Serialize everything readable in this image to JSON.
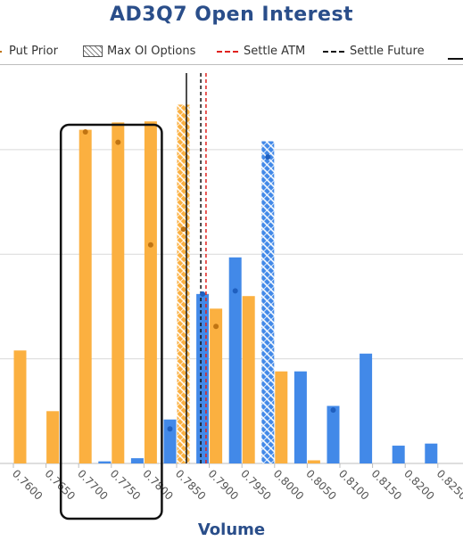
{
  "chart_data": {
    "type": "bar",
    "title": "AD3Q7 Open Interest",
    "xlabel": "Volume",
    "ylabel": "",
    "categories": [
      "0.7600",
      "0.7650",
      "0.7700",
      "0.7750",
      "0.7800",
      "0.7850",
      "0.7900",
      "0.7950",
      "0.8000",
      "0.8050",
      "0.8100",
      "0.8150",
      "0.8200",
      "0.8250"
    ],
    "ylim": [
      0,
      3.8
    ],
    "grid": true,
    "legend_position": "top",
    "legend": {
      "put_prior": "Put Prior",
      "max_oi": "Max OI Options",
      "settle_atm": "Settle ATM",
      "settle_future": "Settle Future"
    },
    "series": [
      {
        "role": "call",
        "color": "#4289e8",
        "values": [
          0,
          0,
          0,
          0.02,
          0.05,
          0.42,
          1.62,
          1.97,
          3.08,
          0.88,
          0.55,
          1.05,
          0.17,
          0.19
        ]
      },
      {
        "role": "put",
        "color": "#fbb040",
        "values": [
          1.08,
          0.5,
          3.19,
          3.26,
          3.27,
          3.43,
          1.48,
          1.6,
          0.88,
          0.03,
          0,
          0,
          0,
          0
        ]
      },
      {
        "role": "put-prior",
        "name": "Put Prior",
        "color": "#c07412",
        "values": [
          null,
          null,
          3.17,
          3.07,
          2.09,
          2.24,
          1.31,
          null,
          null,
          null,
          null,
          null,
          null,
          null
        ]
      },
      {
        "role": "call-prior",
        "color": "#1f5fbf",
        "values": [
          null,
          null,
          null,
          null,
          null,
          0.33,
          1.62,
          1.65,
          2.93,
          null,
          0.51,
          null,
          null,
          null
        ]
      }
    ],
    "max_oi_index": {
      "put": 5,
      "call": 8
    },
    "vlines": {
      "settle_atm": 0.7895,
      "settle_future": 0.7887,
      "extra": 0.7865
    },
    "highlight_range": [
      0.77,
      0.78
    ]
  }
}
